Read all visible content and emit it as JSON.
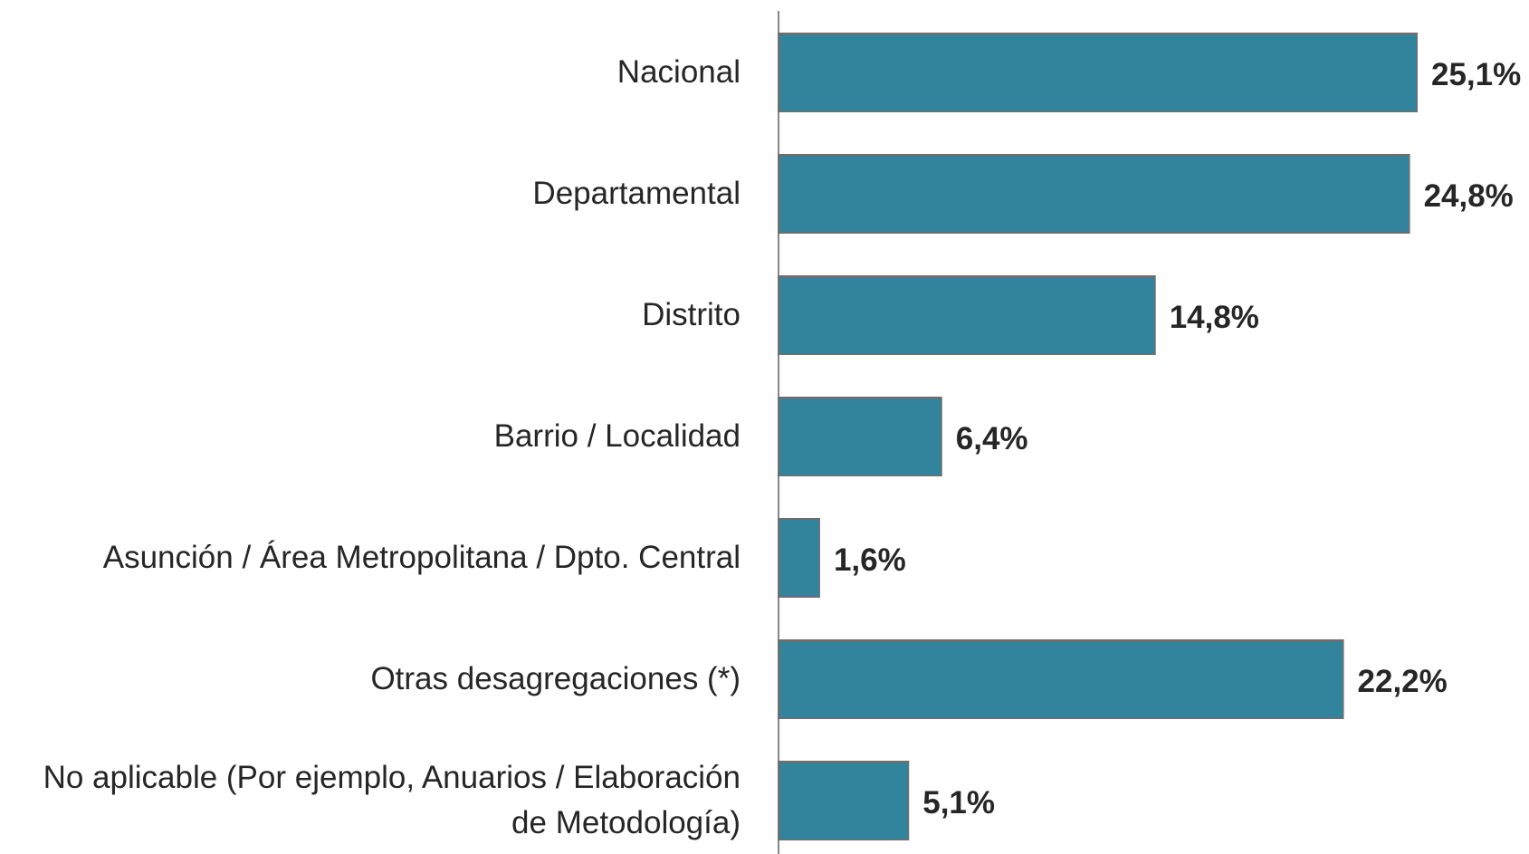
{
  "chart_data": {
    "type": "bar",
    "orientation": "horizontal",
    "categories": [
      "Nacional",
      "Departamental",
      "Distrito",
      "Barrio / Localidad",
      "Asunción / Área Metropolitana / Dpto. Central",
      "Otras desagregaciones (*)",
      "No aplicable (Por ejemplo, Anuarios / Elaboración de Metodología)"
    ],
    "values": [
      25.1,
      24.8,
      14.8,
      6.4,
      1.6,
      22.2,
      5.1
    ],
    "value_labels": [
      "25,1%",
      "24,8%",
      "14,8%",
      "6,4%",
      "1,6%",
      "22,2%",
      "5,1%"
    ],
    "color": "#31849b"
  }
}
